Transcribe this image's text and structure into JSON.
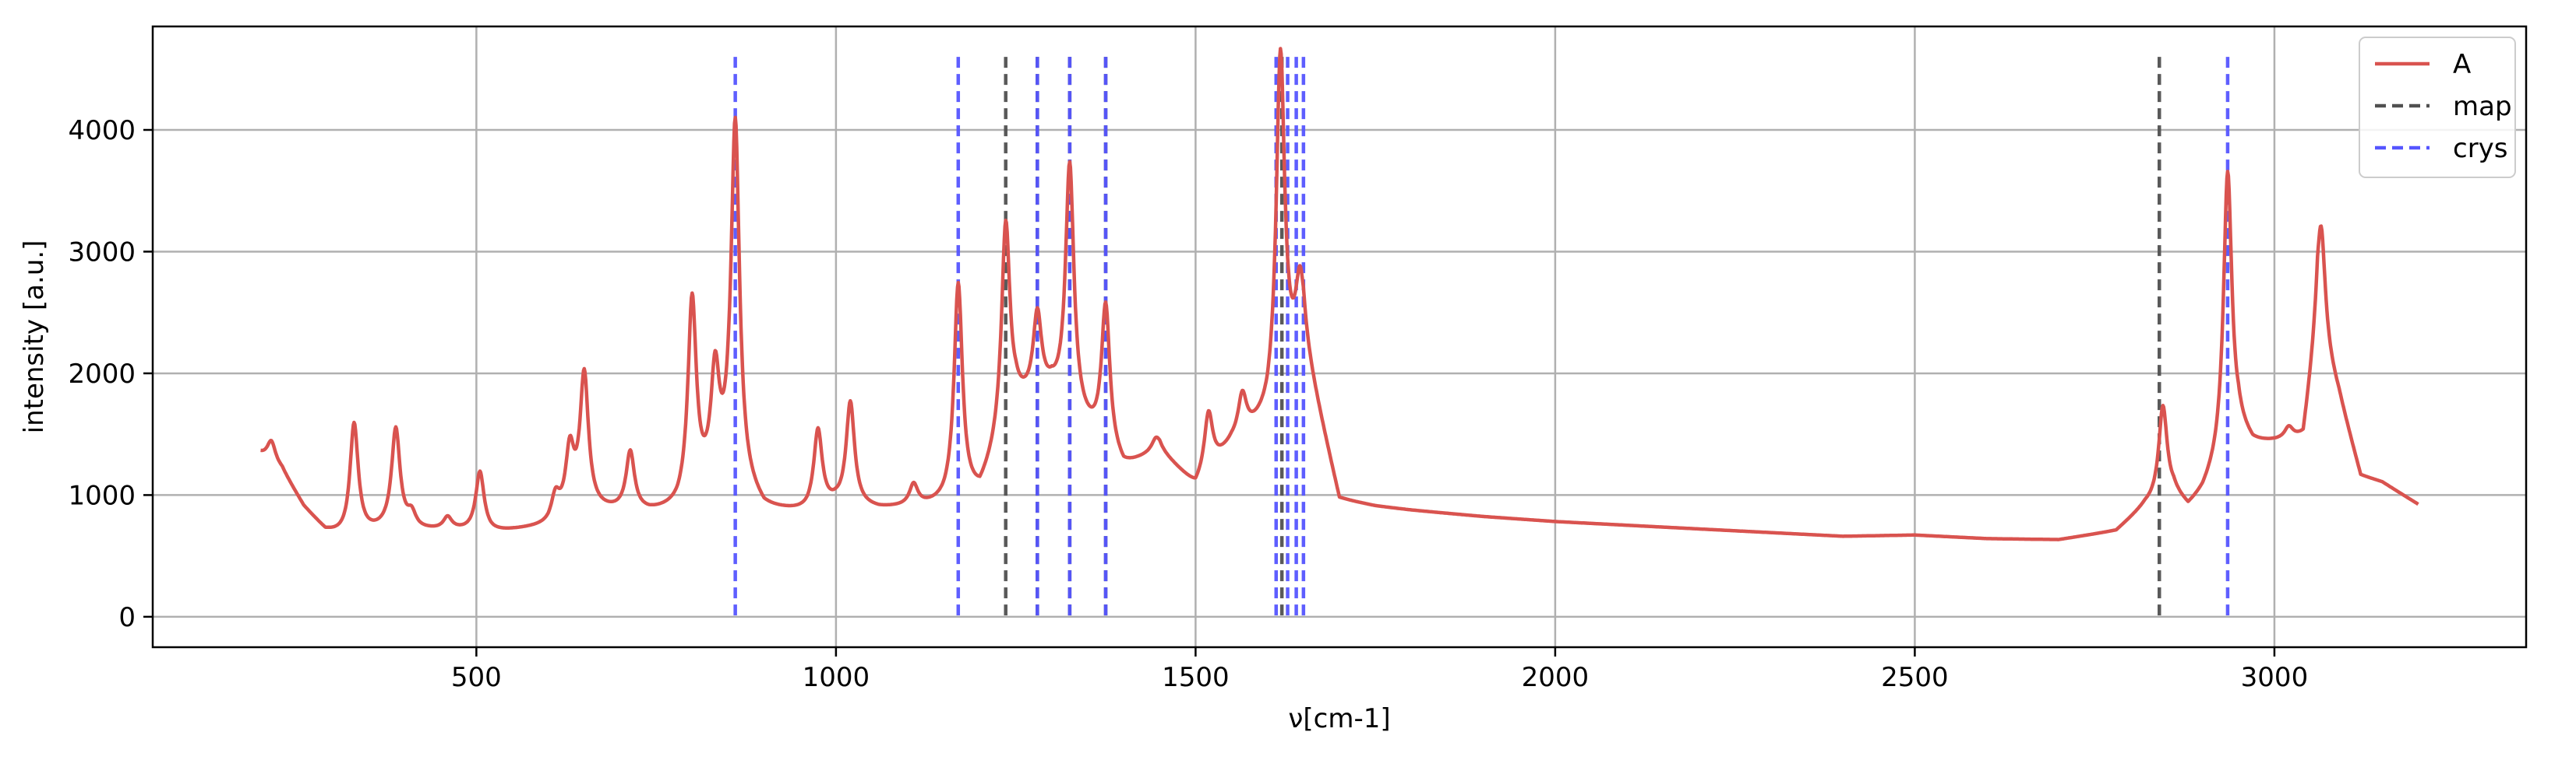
{
  "chart_data": {
    "type": "line",
    "xlabel": "ν[cm-1]",
    "ylabel": "intensity [a.u.]",
    "xlim": [
      50,
      3350
    ],
    "ylim": [
      -250,
      4850
    ],
    "xticks": [
      500,
      1000,
      1500,
      2000,
      2500,
      3000
    ],
    "yticks": [
      0,
      1000,
      2000,
      3000,
      4000
    ],
    "grid": true,
    "legend_position": "top-right",
    "colors": {
      "A": "#d9534f",
      "map": "#505050",
      "crys": "#5555ff"
    },
    "series": [
      {
        "name": "A",
        "style": "solid",
        "peak_width_cm1": 7,
        "baseline": [
          [
            200,
            1330
          ],
          [
            230,
            1200
          ],
          [
            260,
            900
          ],
          [
            290,
            700
          ],
          [
            320,
            640
          ],
          [
            380,
            720
          ],
          [
            420,
            700
          ],
          [
            470,
            700
          ],
          [
            520,
            680
          ],
          [
            600,
            730
          ],
          [
            640,
            860
          ],
          [
            700,
            850
          ],
          [
            740,
            840
          ],
          [
            780,
            860
          ],
          [
            850,
            1150
          ],
          [
            900,
            860
          ],
          [
            960,
            840
          ],
          [
            1000,
            900
          ],
          [
            1060,
            870
          ],
          [
            1150,
            900
          ],
          [
            1200,
            980
          ],
          [
            1250,
            1700
          ],
          [
            1300,
            1800
          ],
          [
            1400,
            1200
          ],
          [
            1450,
            1350
          ],
          [
            1500,
            1050
          ],
          [
            1550,
            1400
          ],
          [
            1600,
            1600
          ],
          [
            1650,
            2200
          ],
          [
            1700,
            950
          ],
          [
            1750,
            900
          ],
          [
            1800,
            870
          ],
          [
            1900,
            820
          ],
          [
            2000,
            780
          ],
          [
            2100,
            750
          ],
          [
            2200,
            720
          ],
          [
            2300,
            690
          ],
          [
            2400,
            660
          ],
          [
            2500,
            670
          ],
          [
            2600,
            640
          ],
          [
            2700,
            630
          ],
          [
            2780,
            700
          ],
          [
            2820,
            900
          ],
          [
            2860,
            1000
          ],
          [
            2880,
            880
          ],
          [
            2900,
            1000
          ],
          [
            2920,
            1200
          ],
          [
            2950,
            1500
          ],
          [
            2970,
            1400
          ],
          [
            3000,
            1420
          ],
          [
            3040,
            1450
          ],
          [
            3060,
            2300
          ],
          [
            3090,
            1800
          ],
          [
            3120,
            1150
          ],
          [
            3150,
            1100
          ],
          [
            3200,
            920
          ]
        ],
        "peaks": [
          [
            215,
            1440
          ],
          [
            330,
            1580
          ],
          [
            388,
            1530
          ],
          [
            410,
            820
          ],
          [
            460,
            800
          ],
          [
            505,
            1180
          ],
          [
            610,
            960
          ],
          [
            630,
            1330
          ],
          [
            650,
            1960
          ],
          [
            714,
            1330
          ],
          [
            800,
            2570
          ],
          [
            832,
            1930
          ],
          [
            860,
            4020
          ],
          [
            975,
            1510
          ],
          [
            1020,
            1740
          ],
          [
            1108,
            1060
          ],
          [
            1170,
            2710
          ],
          [
            1236,
            3200
          ],
          [
            1280,
            2430
          ],
          [
            1325,
            3680
          ],
          [
            1375,
            2530
          ],
          [
            1445,
            1440
          ],
          [
            1518,
            1660
          ],
          [
            1565,
            1790
          ],
          [
            1618,
            4620
          ],
          [
            1645,
            2700
          ],
          [
            2845,
            1720
          ],
          [
            2935,
            3650
          ],
          [
            3065,
            3200
          ],
          [
            3020,
            1530
          ]
        ]
      },
      {
        "name": "map",
        "style": "dashed",
        "x": [
          1236,
          1280,
          1325,
          1375,
          1620,
          2840
        ]
      },
      {
        "name": "crys",
        "style": "dashed",
        "x": [
          860,
          1170,
          1280,
          1325,
          1375,
          1612,
          1628,
          1640,
          1650,
          2935
        ]
      }
    ]
  }
}
